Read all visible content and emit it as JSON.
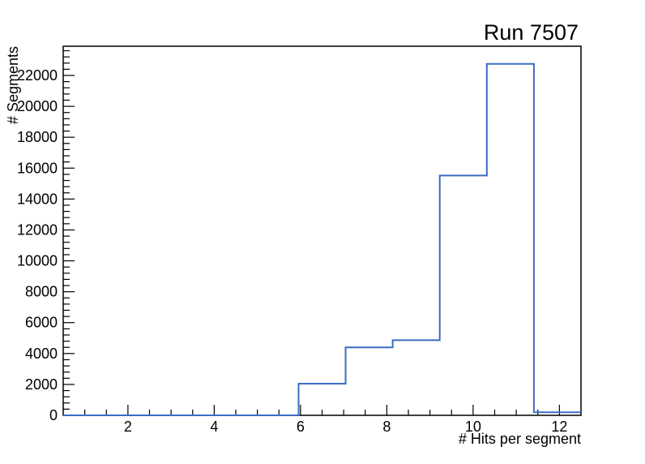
{
  "window": {
    "background": "#ffffff"
  },
  "chart_data": {
    "type": "histogram-step",
    "title": "Run 7507",
    "xlabel": "# Hits per segment",
    "ylabel": "# Segments",
    "xmin": 0.5,
    "xmax": 12.5,
    "nbins": 11,
    "bin_edges": [
      0.5,
      1.591,
      2.682,
      3.773,
      4.864,
      5.955,
      7.045,
      8.136,
      9.227,
      10.318,
      11.409,
      12.5
    ],
    "values": [
      0,
      0,
      0,
      0,
      0,
      2050,
      4400,
      4860,
      15520,
      22750,
      200
    ],
    "ylim": [
      0,
      23890
    ],
    "y_major_step": 2000,
    "y_minor_step": 400,
    "y_tick_labels": [
      "0",
      "2000",
      "4000",
      "6000",
      "8000",
      "10000",
      "12000",
      "14000",
      "16000",
      "18000",
      "20000",
      "22000"
    ],
    "x_major_ticks": [
      2,
      4,
      6,
      8,
      10,
      12
    ],
    "x_tick_labels": [
      "2",
      "4",
      "6",
      "8",
      "10",
      "12"
    ],
    "x_minor_step": 0.5,
    "x_minor_start": 1.0,
    "x_minor_end": 12.0,
    "grid": false,
    "legend": null,
    "line_color": "#3a6cc4",
    "line_width": 2,
    "axis_color": "#000000",
    "text_color": "#000000"
  }
}
